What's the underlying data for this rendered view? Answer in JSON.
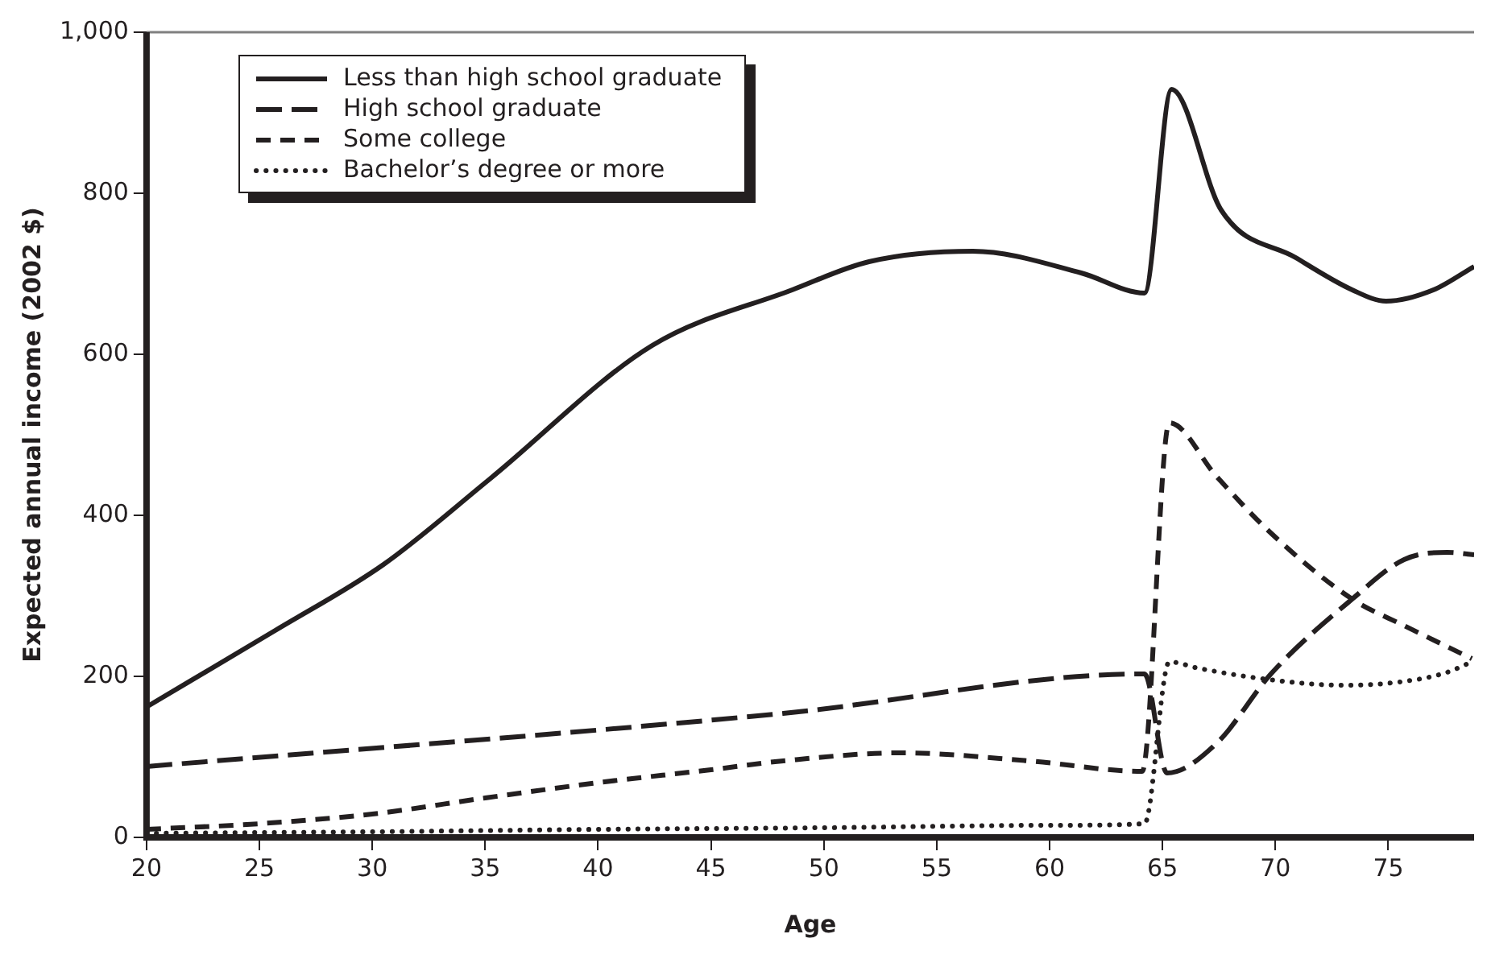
{
  "chart_data": {
    "type": "line",
    "xlabel": "Age",
    "ylabel": "Expected annual income (2002 $)",
    "xlim": [
      20,
      78.8
    ],
    "xticks": [
      20,
      25,
      30,
      35,
      40,
      45,
      50,
      55,
      60,
      65,
      70,
      75
    ],
    "ylim": [
      0,
      1000
    ],
    "yticks": [
      0,
      200,
      400,
      600,
      800,
      {
        "value": 1000,
        "label": "1,000"
      }
    ],
    "grid": false,
    "legend": "top left",
    "marker": "none",
    "series": [
      {
        "name": "Less than high school graduate",
        "color": "#231f20",
        "line_style": "solid",
        "x": [
          20,
          25.7,
          30.5,
          35.2,
          42.4,
          48.6,
          52,
          56.6,
          61.4,
          64.2,
          65.4,
          67.6,
          70.9,
          73.4,
          74.9,
          77,
          78.8
        ],
        "values": [
          162,
          257,
          339,
          445,
          611,
          680,
          715,
          728,
          701,
          676,
          929,
          779,
          720,
          680,
          666,
          680,
          709
        ]
      },
      {
        "name": "High school graduate",
        "color": "#231f20",
        "line_style": "dashed",
        "x": [
          20,
          48.2,
          64.2,
          65.2,
          67.4,
          69.8,
          73.4,
          75.7,
          77.6,
          78.8
        ],
        "values": [
          88,
          154,
          203,
          80,
          117,
          203,
          296,
          345,
          354,
          351
        ]
      },
      {
        "name": "Some college",
        "color": "#231f20",
        "line_style": "dashed",
        "x": [
          20,
          25,
          30,
          35,
          40,
          45,
          48.2,
          53.4,
          59.1,
          64.1,
          65.3,
          67.4,
          69.8,
          73.4,
          75.7,
          78.7
        ],
        "values": [
          10,
          17,
          29,
          49,
          68,
          84,
          95,
          105,
          95,
          82,
          515,
          448,
          378,
          296,
          263,
          222
        ]
      },
      {
        "name": "Bachelor’s degree or more",
        "color": "#231f20",
        "line_style": "dotted",
        "x": [
          20,
          30,
          40,
          50,
          60,
          64.2,
          65.3,
          66.6,
          70,
          73,
          75.5,
          77.5,
          78.7
        ],
        "values": [
          5,
          7,
          10,
          12,
          15,
          17,
          218,
          210,
          195,
          189,
          193,
          204,
          218
        ]
      }
    ]
  }
}
